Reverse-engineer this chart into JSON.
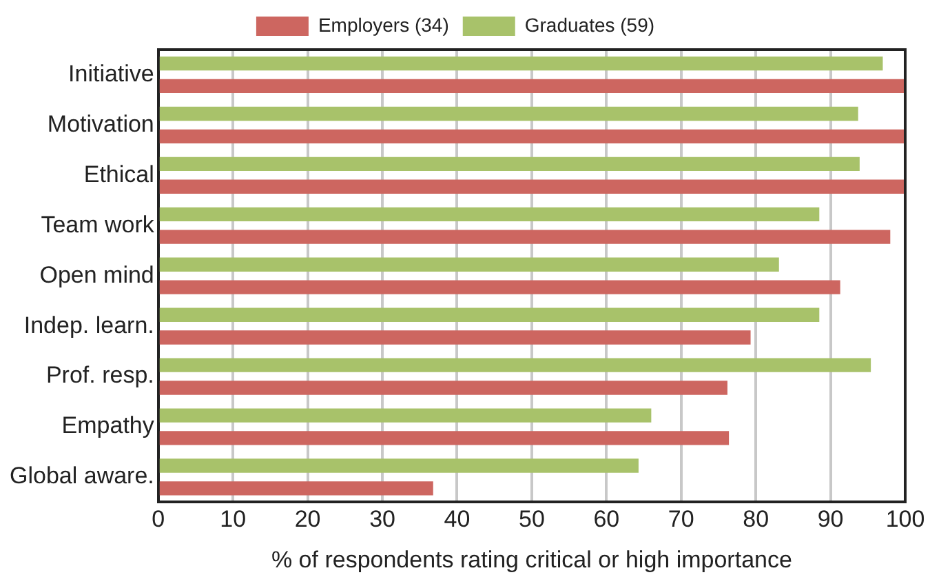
{
  "chart_data": {
    "type": "bar",
    "orientation": "horizontal",
    "xlabel": "% of respondents rating critical or high importance",
    "categories": [
      "Initiative",
      "Motivation",
      "Ethical",
      "Team work",
      "Open mind",
      "Indep. learn.",
      "Prof. resp.",
      "Empathy",
      "Global aware."
    ],
    "series": [
      {
        "name": "Graduates (59)",
        "color": "#a8c26a",
        "values": [
          97,
          93.7,
          93.9,
          88.5,
          83.1,
          88.5,
          95.4,
          66,
          64.3
        ]
      },
      {
        "name": "Employers (34)",
        "color": "#cd6660",
        "values": [
          100,
          100,
          100,
          98,
          91.3,
          79.3,
          76.2,
          76.4,
          36.8
        ]
      }
    ],
    "xlim": [
      0,
      100
    ],
    "xticks": [
      0,
      10,
      20,
      30,
      40,
      50,
      60,
      70,
      80,
      90,
      100
    ],
    "grid": "x",
    "legend": "top"
  }
}
